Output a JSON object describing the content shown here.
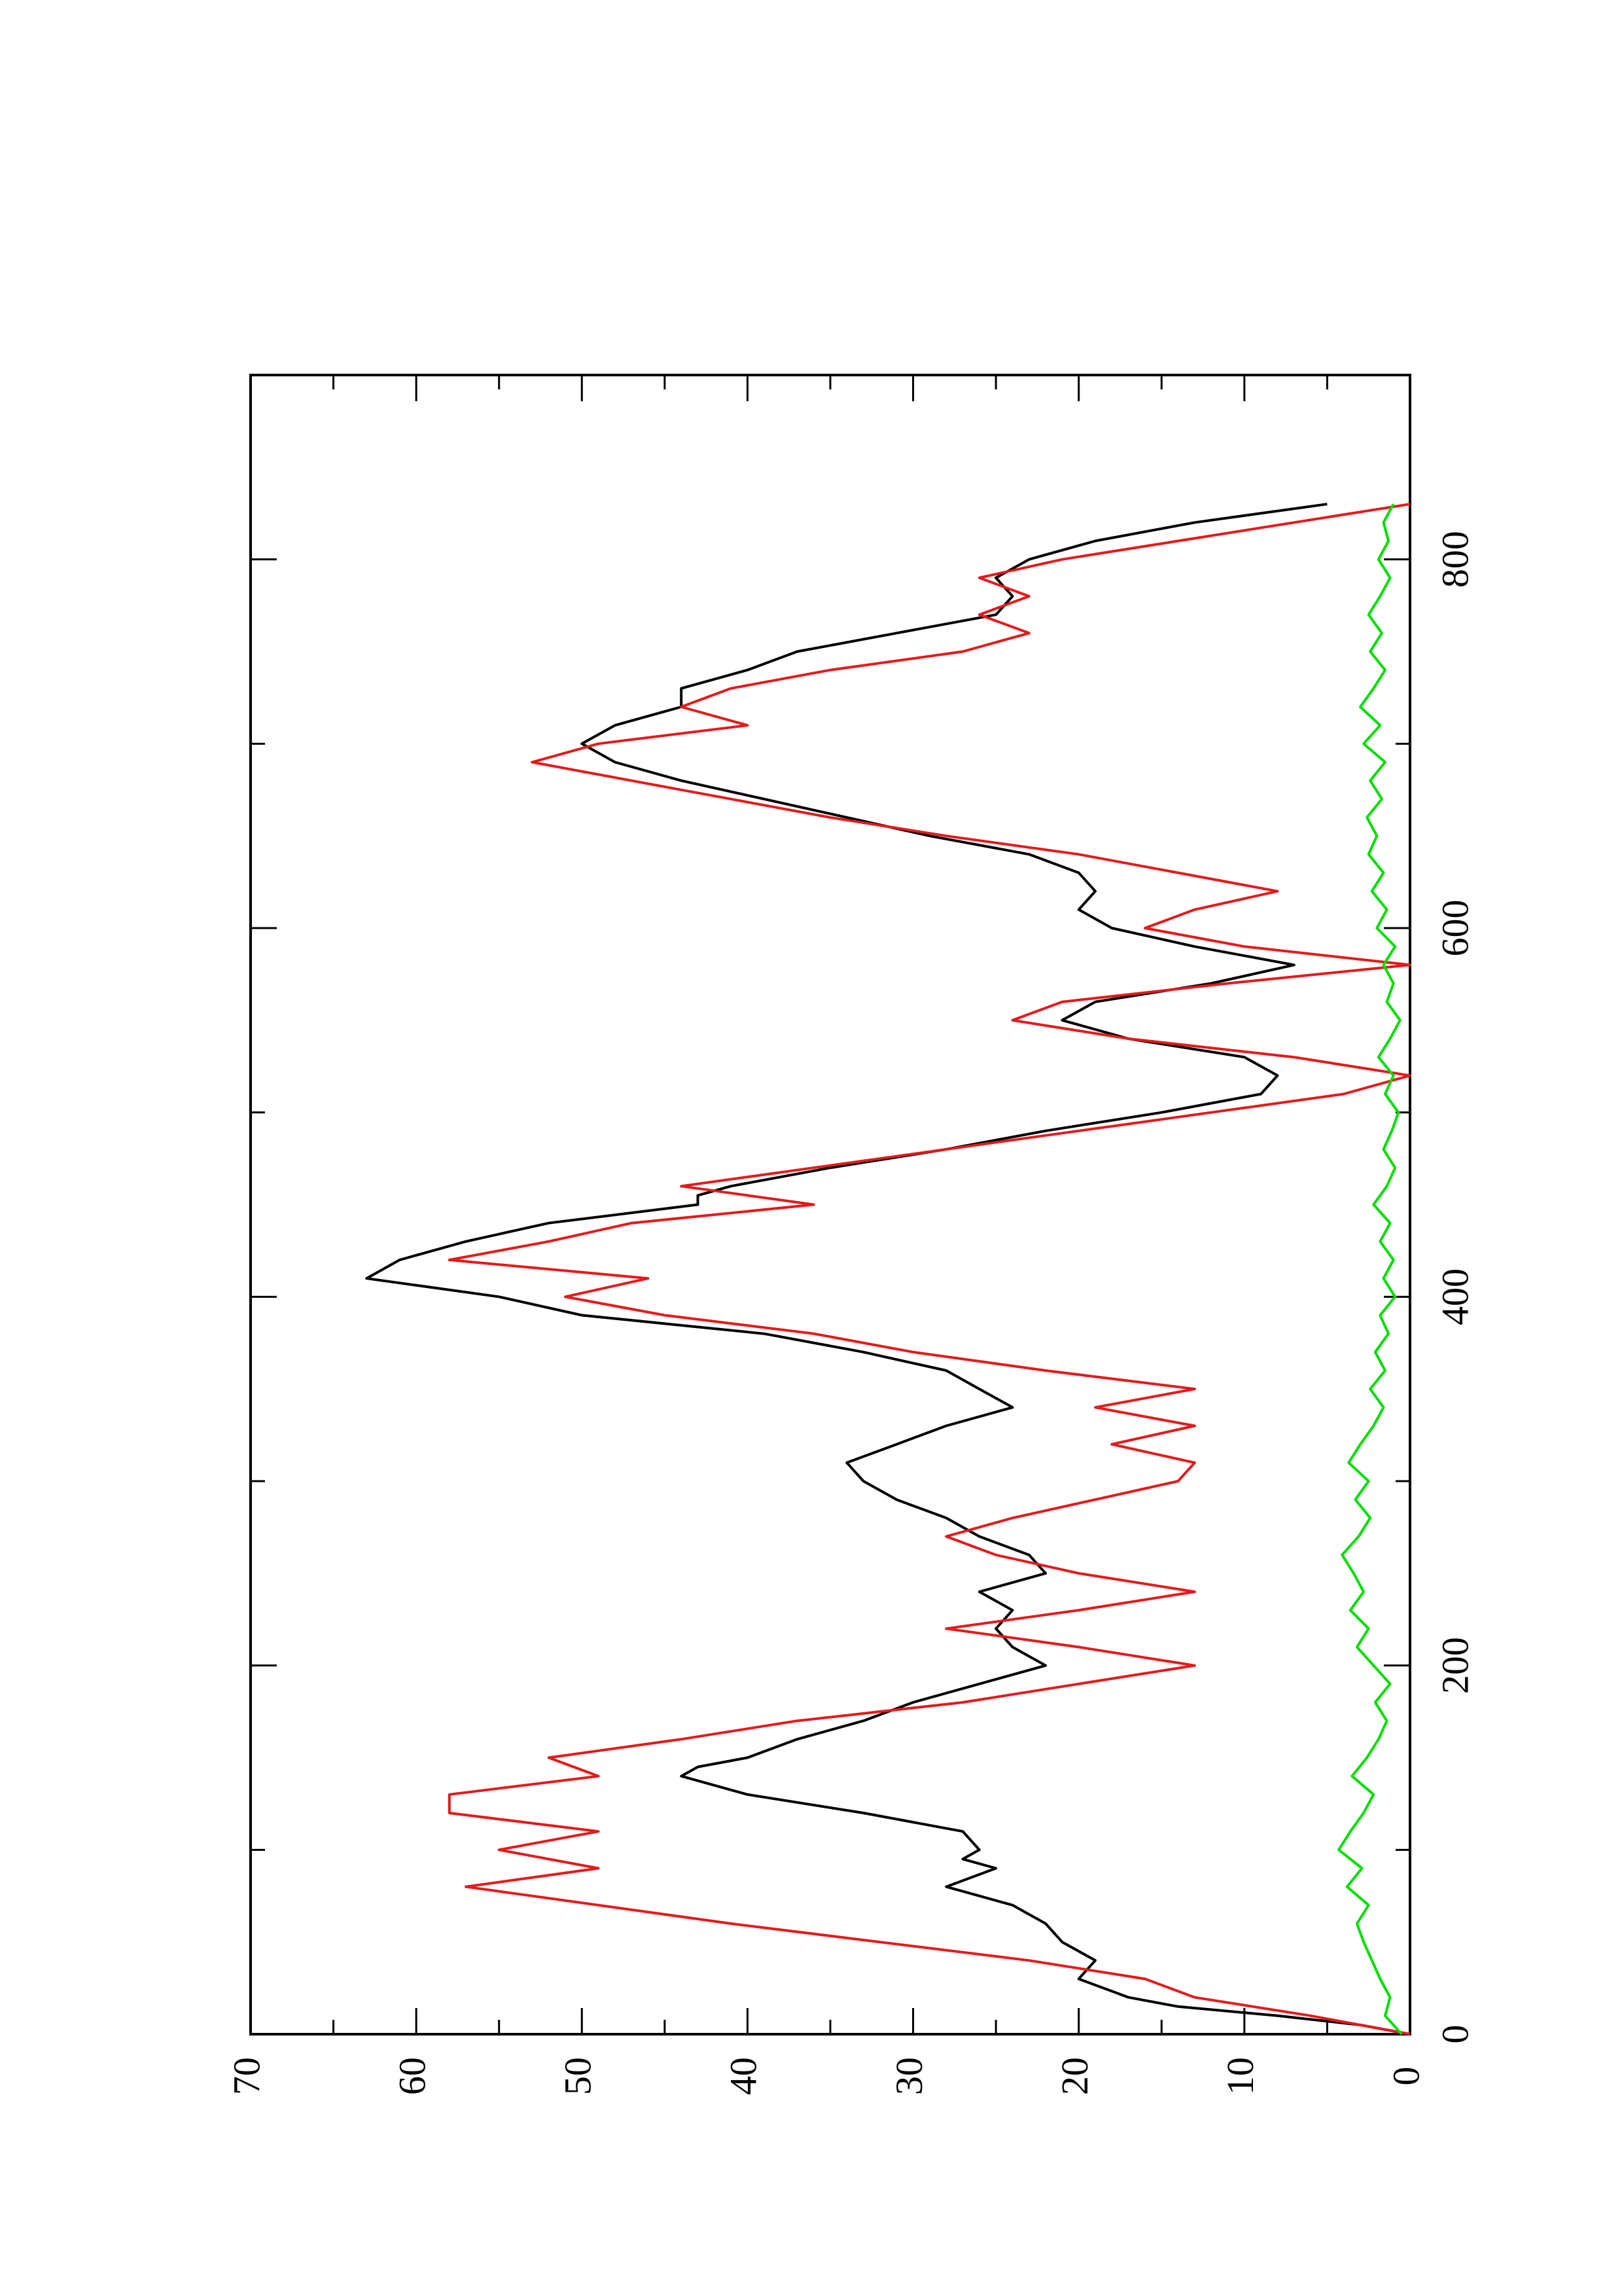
{
  "chart_data": {
    "type": "line",
    "orientation": "rotated-90-ccw",
    "xlim": [
      0,
      900
    ],
    "ylim": [
      0,
      70
    ],
    "x_ticks": [
      "0",
      "200",
      "400",
      "600",
      "800"
    ],
    "y_ticks": [
      "0",
      "10",
      "20",
      "30",
      "40",
      "50",
      "60",
      "70"
    ],
    "grid": false,
    "legend": "none",
    "series": [
      {
        "color": "#000000",
        "x": [
          0,
          5,
          10,
          15,
          20,
          30,
          40,
          50,
          60,
          70,
          80,
          90,
          95,
          100,
          110,
          120,
          130,
          140,
          145,
          150,
          160,
          170,
          180,
          190,
          200,
          210,
          220,
          230,
          240,
          250,
          260,
          270,
          280,
          290,
          300,
          310,
          320,
          330,
          340,
          350,
          360,
          370,
          380,
          390,
          400,
          410,
          420,
          430,
          440,
          450,
          455,
          460,
          470,
          480,
          490,
          500,
          510,
          520,
          530,
          540,
          550,
          560,
          570,
          580,
          590,
          600,
          610,
          620,
          630,
          640,
          650,
          660,
          670,
          680,
          690,
          700,
          710,
          720,
          730,
          740,
          750,
          760,
          770,
          780,
          790,
          800,
          810,
          820,
          830
        ],
        "y": [
          0,
          3,
          8,
          14,
          17,
          20,
          19,
          21,
          22,
          24,
          28,
          25,
          27,
          26,
          27,
          33,
          40,
          44,
          43,
          40,
          37,
          33,
          30,
          26,
          22,
          24,
          25,
          24,
          26,
          22,
          23,
          26,
          28,
          31,
          33,
          34,
          31,
          28,
          24,
          26,
          28,
          33,
          39,
          50,
          55,
          63,
          61,
          57,
          52,
          43,
          43,
          41,
          35,
          28,
          22,
          15,
          9,
          8,
          10,
          17,
          21,
          19,
          12,
          7,
          13,
          18,
          20,
          19,
          20,
          23,
          29,
          34,
          39,
          44,
          48,
          50,
          48,
          44,
          44,
          40,
          37,
          31,
          25,
          24,
          25,
          23,
          19,
          13,
          5
        ]
      },
      {
        "color": "#e41a1c",
        "x": [
          0,
          10,
          20,
          30,
          40,
          50,
          60,
          70,
          80,
          90,
          100,
          110,
          120,
          130,
          140,
          150,
          160,
          170,
          180,
          190,
          200,
          210,
          220,
          230,
          240,
          250,
          260,
          270,
          280,
          290,
          300,
          310,
          320,
          330,
          340,
          350,
          360,
          370,
          380,
          390,
          400,
          410,
          420,
          430,
          440,
          450,
          460,
          470,
          480,
          490,
          500,
          510,
          520,
          530,
          540,
          550,
          560,
          570,
          580,
          590,
          600,
          610,
          620,
          630,
          640,
          650,
          660,
          670,
          680,
          690,
          700,
          710,
          720,
          730,
          740,
          750,
          760,
          770,
          780,
          790,
          800,
          810,
          820,
          830
        ],
        "y": [
          0,
          6,
          13,
          16,
          23,
          32,
          41,
          49,
          57,
          49,
          55,
          49,
          58,
          58,
          49,
          52,
          44,
          37,
          27,
          20,
          13,
          20,
          28,
          20,
          13,
          20,
          25,
          28,
          24,
          19,
          14,
          13,
          18,
          13,
          19,
          13,
          22,
          30,
          36,
          45,
          51,
          46,
          58,
          52,
          47,
          36,
          44,
          36,
          28,
          20,
          12,
          4,
          0,
          7,
          17,
          24,
          21,
          11,
          0,
          10,
          16,
          13,
          8,
          14,
          20,
          28,
          35,
          41,
          47,
          53,
          49,
          40,
          44,
          41,
          35,
          27,
          23,
          26,
          23,
          26,
          21,
          14,
          7,
          0
        ]
      },
      {
        "color": "#00dd00",
        "x": [
          0,
          10,
          20,
          30,
          40,
          50,
          60,
          70,
          80,
          90,
          100,
          110,
          120,
          130,
          140,
          150,
          160,
          170,
          180,
          190,
          200,
          210,
          220,
          230,
          240,
          250,
          260,
          270,
          280,
          290,
          300,
          310,
          320,
          330,
          340,
          350,
          360,
          370,
          380,
          390,
          400,
          410,
          420,
          430,
          440,
          450,
          460,
          470,
          480,
          490,
          500,
          510,
          520,
          530,
          540,
          550,
          560,
          570,
          580,
          590,
          600,
          610,
          620,
          630,
          640,
          650,
          660,
          670,
          680,
          690,
          700,
          710,
          720,
          730,
          740,
          750,
          760,
          770,
          780,
          790,
          800,
          810,
          820,
          830
        ],
        "y": [
          0.5,
          1.5,
          1.2,
          1.8,
          2.3,
          2.8,
          3.2,
          2.5,
          3.8,
          2.9,
          4.3,
          3.6,
          2.8,
          2.2,
          3.5,
          2.6,
          1.9,
          1.4,
          2.1,
          1.2,
          2.2,
          3.2,
          2.5,
          3.6,
          2.8,
          3.4,
          4.1,
          3.1,
          2.4,
          3.3,
          2.5,
          3.7,
          3.0,
          2.2,
          1.6,
          2.4,
          1.5,
          2.1,
          1.3,
          1.8,
          0.9,
          1.6,
          1.0,
          1.8,
          1.2,
          2.2,
          1.4,
          0.9,
          1.6,
          1.1,
          0.7,
          1.5,
          1.0,
          1.9,
          1.2,
          0.6,
          1.4,
          1.0,
          1.6,
          0.9,
          2.0,
          1.4,
          2.3,
          1.6,
          2.5,
          2.0,
          2.6,
          1.7,
          2.4,
          1.5,
          2.8,
          1.8,
          3.0,
          2.2,
          1.5,
          2.4,
          1.7,
          2.5,
          1.8,
          1.2,
          1.9,
          1.3,
          1.6,
          1.0
        ]
      }
    ]
  }
}
